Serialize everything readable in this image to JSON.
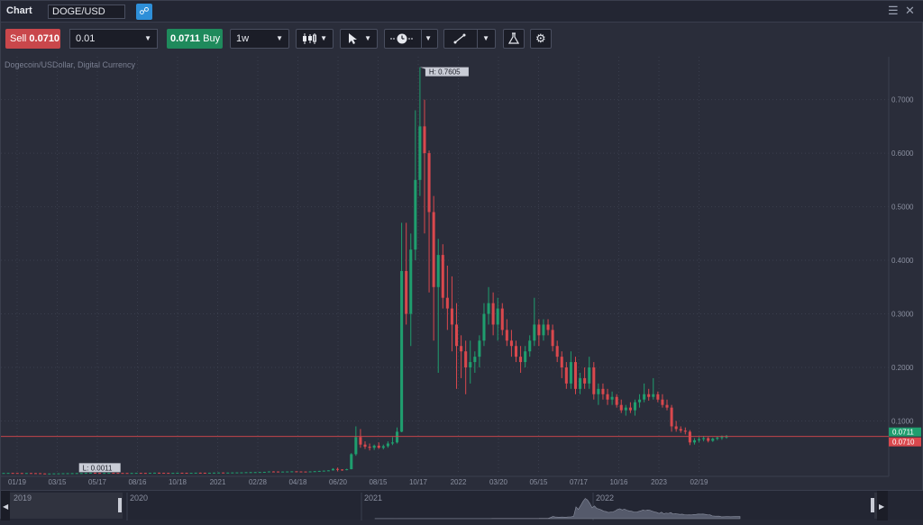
{
  "header": {
    "title": "Chart",
    "symbol": "DOGE/USD",
    "link_icon": "link-icon",
    "menu_icon": "hamburger-icon",
    "close_icon": "close-icon"
  },
  "toolbar": {
    "sell_label": "Sell",
    "sell_price": "0.0710",
    "quantity": "0.01",
    "buy_price": "0.0711",
    "buy_label": "Buy",
    "timeframe": "1w",
    "chart_type_icon": "candlestick-icon",
    "cursor_icon": "cursor-icon",
    "timezone_icon": "clock-icon",
    "drawing_icon": "trendline-icon",
    "indicators_icon": "flask-icon",
    "settings_icon": "gear-icon"
  },
  "colors": {
    "up": "#1f9e6e",
    "down": "#d9484d",
    "background": "#2a2d3a",
    "grid": "#3a3e4d",
    "sell_bg": "#c9474b",
    "buy_bg": "#1f8a5c"
  },
  "chart_data": {
    "type": "candlestick",
    "subtitle": "Dogecoin/USDollar, Digital Currency",
    "ylim": [
      0,
      0.78
    ],
    "y_ticks": [
      "0.1000",
      "0.2000",
      "0.3000",
      "0.4000",
      "0.5000",
      "0.6000",
      "0.7000"
    ],
    "y_tick_values": [
      0.1,
      0.2,
      0.3,
      0.4,
      0.5,
      0.6,
      0.7
    ],
    "x_ticks": [
      "01/19",
      "03/15",
      "05/17",
      "08/16",
      "10/18",
      "2021",
      "02/28",
      "04/18",
      "06/20",
      "08/15",
      "10/17",
      "2022",
      "03/20",
      "05/15",
      "07/17",
      "10/16",
      "2023",
      "02/19"
    ],
    "high_label": "H: 0.7605",
    "low_label": "L: 0.0011",
    "high_value": 0.7605,
    "low_value": 0.0011,
    "ask_label": "0.0711",
    "bid_label": "0.0710",
    "ask": 0.0711,
    "bid": 0.071,
    "navigator_labels": [
      "2019",
      "2020",
      "2021",
      "2022"
    ],
    "candles": [
      [
        0.003,
        0.0031,
        0.0029,
        0.003
      ],
      [
        0.003,
        0.0032,
        0.0029,
        0.0031
      ],
      [
        0.0031,
        0.0032,
        0.0029,
        0.003
      ],
      [
        0.003,
        0.0031,
        0.0028,
        0.0029
      ],
      [
        0.0029,
        0.003,
        0.0027,
        0.0028
      ],
      [
        0.0028,
        0.003,
        0.0027,
        0.0029
      ],
      [
        0.0029,
        0.003,
        0.0026,
        0.0027
      ],
      [
        0.0027,
        0.0028,
        0.0025,
        0.0026
      ],
      [
        0.0026,
        0.0027,
        0.002,
        0.0021
      ],
      [
        0.0021,
        0.0022,
        0.0011,
        0.0018
      ],
      [
        0.0018,
        0.0021,
        0.0017,
        0.002
      ],
      [
        0.002,
        0.0023,
        0.0019,
        0.0022
      ],
      [
        0.0022,
        0.0024,
        0.0021,
        0.0023
      ],
      [
        0.0023,
        0.0026,
        0.0022,
        0.0025
      ],
      [
        0.0025,
        0.0027,
        0.0024,
        0.0026
      ],
      [
        0.0026,
        0.0028,
        0.0025,
        0.0027
      ],
      [
        0.0027,
        0.0029,
        0.0026,
        0.0028
      ],
      [
        0.0028,
        0.003,
        0.0027,
        0.0029
      ],
      [
        0.0029,
        0.0033,
        0.0028,
        0.0032
      ],
      [
        0.0032,
        0.0036,
        0.0031,
        0.0034
      ],
      [
        0.0034,
        0.0036,
        0.003,
        0.0031
      ],
      [
        0.0031,
        0.0033,
        0.0029,
        0.003
      ],
      [
        0.003,
        0.0032,
        0.0028,
        0.0031
      ],
      [
        0.0031,
        0.0034,
        0.003,
        0.0033
      ],
      [
        0.0033,
        0.0035,
        0.0031,
        0.0032
      ],
      [
        0.0032,
        0.0034,
        0.003,
        0.0031
      ],
      [
        0.0031,
        0.0033,
        0.0029,
        0.003
      ],
      [
        0.003,
        0.0032,
        0.0028,
        0.0029
      ],
      [
        0.0029,
        0.0031,
        0.0027,
        0.003
      ],
      [
        0.003,
        0.0033,
        0.0029,
        0.0032
      ],
      [
        0.0032,
        0.0034,
        0.003,
        0.0031
      ],
      [
        0.0031,
        0.0033,
        0.0029,
        0.003
      ],
      [
        0.003,
        0.0034,
        0.0029,
        0.0033
      ],
      [
        0.0033,
        0.0036,
        0.0032,
        0.0035
      ],
      [
        0.0035,
        0.0037,
        0.0032,
        0.0033
      ],
      [
        0.0033,
        0.0035,
        0.0031,
        0.0032
      ],
      [
        0.0032,
        0.0034,
        0.003,
        0.0031
      ],
      [
        0.0031,
        0.0033,
        0.0029,
        0.0032
      ],
      [
        0.0032,
        0.0035,
        0.0031,
        0.0034
      ],
      [
        0.0034,
        0.0036,
        0.0032,
        0.0033
      ],
      [
        0.0033,
        0.0035,
        0.0031,
        0.0032
      ],
      [
        0.0032,
        0.0034,
        0.003,
        0.0033
      ],
      [
        0.0033,
        0.0036,
        0.0032,
        0.0035
      ],
      [
        0.0035,
        0.0037,
        0.0033,
        0.0034
      ],
      [
        0.0034,
        0.0036,
        0.0032,
        0.0033
      ],
      [
        0.0033,
        0.0035,
        0.0031,
        0.0034
      ],
      [
        0.0034,
        0.0037,
        0.0033,
        0.0036
      ],
      [
        0.0036,
        0.004,
        0.0035,
        0.0038
      ],
      [
        0.0038,
        0.004,
        0.0035,
        0.0036
      ],
      [
        0.0036,
        0.0038,
        0.0034,
        0.0037
      ],
      [
        0.0037,
        0.004,
        0.0036,
        0.0039
      ],
      [
        0.0039,
        0.0042,
        0.0037,
        0.004
      ],
      [
        0.004,
        0.0043,
        0.0038,
        0.0041
      ],
      [
        0.0041,
        0.0045,
        0.004,
        0.0044
      ],
      [
        0.0044,
        0.0047,
        0.0042,
        0.0045
      ],
      [
        0.0045,
        0.0048,
        0.0043,
        0.0046
      ],
      [
        0.0046,
        0.005,
        0.0045,
        0.0048
      ],
      [
        0.0048,
        0.0052,
        0.0046,
        0.005
      ],
      [
        0.005,
        0.006,
        0.0049,
        0.0058
      ],
      [
        0.0058,
        0.0062,
        0.0055,
        0.0057
      ],
      [
        0.0057,
        0.006,
        0.0053,
        0.0054
      ],
      [
        0.0054,
        0.0058,
        0.0052,
        0.0056
      ],
      [
        0.0056,
        0.0059,
        0.0054,
        0.0058
      ],
      [
        0.0058,
        0.0061,
        0.0056,
        0.006
      ],
      [
        0.006,
        0.0062,
        0.0057,
        0.0058
      ],
      [
        0.0058,
        0.006,
        0.0055,
        0.0057
      ],
      [
        0.0057,
        0.0059,
        0.0054,
        0.0056
      ],
      [
        0.0056,
        0.006,
        0.0055,
        0.0059
      ],
      [
        0.0059,
        0.0065,
        0.0057,
        0.0063
      ],
      [
        0.0063,
        0.007,
        0.0061,
        0.0068
      ],
      [
        0.0068,
        0.0075,
        0.0066,
        0.0073
      ],
      [
        0.0073,
        0.008,
        0.0071,
        0.0078
      ],
      [
        0.0078,
        0.012,
        0.0076,
        0.0105
      ],
      [
        0.0105,
        0.013,
        0.006,
        0.0095
      ],
      [
        0.0095,
        0.01,
        0.007,
        0.0085
      ],
      [
        0.0085,
        0.011,
        0.008,
        0.01
      ],
      [
        0.01,
        0.04,
        0.0098,
        0.038
      ],
      [
        0.038,
        0.09,
        0.035,
        0.07
      ],
      [
        0.07,
        0.085,
        0.05,
        0.056
      ],
      [
        0.056,
        0.062,
        0.048,
        0.052
      ],
      [
        0.052,
        0.058,
        0.045,
        0.05
      ],
      [
        0.05,
        0.056,
        0.046,
        0.054
      ],
      [
        0.054,
        0.06,
        0.048,
        0.05
      ],
      [
        0.05,
        0.056,
        0.047,
        0.053
      ],
      [
        0.053,
        0.062,
        0.05,
        0.058
      ],
      [
        0.058,
        0.07,
        0.055,
        0.06
      ],
      [
        0.06,
        0.088,
        0.058,
        0.08
      ],
      [
        0.08,
        0.47,
        0.079,
        0.38
      ],
      [
        0.38,
        0.47,
        0.28,
        0.3
      ],
      [
        0.3,
        0.45,
        0.24,
        0.42
      ],
      [
        0.42,
        0.68,
        0.4,
        0.55
      ],
      [
        0.55,
        0.7605,
        0.52,
        0.65
      ],
      [
        0.65,
        0.7,
        0.45,
        0.6
      ],
      [
        0.6,
        0.605,
        0.34,
        0.49
      ],
      [
        0.49,
        0.52,
        0.25,
        0.35
      ],
      [
        0.35,
        0.44,
        0.19,
        0.41
      ],
      [
        0.41,
        0.43,
        0.31,
        0.33
      ],
      [
        0.33,
        0.39,
        0.27,
        0.31
      ],
      [
        0.31,
        0.37,
        0.23,
        0.28
      ],
      [
        0.28,
        0.32,
        0.16,
        0.24
      ],
      [
        0.24,
        0.26,
        0.18,
        0.23
      ],
      [
        0.23,
        0.25,
        0.15,
        0.2
      ],
      [
        0.2,
        0.25,
        0.17,
        0.21
      ],
      [
        0.21,
        0.23,
        0.19,
        0.22
      ],
      [
        0.22,
        0.26,
        0.2,
        0.25
      ],
      [
        0.25,
        0.32,
        0.24,
        0.3
      ],
      [
        0.3,
        0.35,
        0.28,
        0.32
      ],
      [
        0.32,
        0.34,
        0.26,
        0.28
      ],
      [
        0.28,
        0.33,
        0.25,
        0.31
      ],
      [
        0.31,
        0.32,
        0.26,
        0.27
      ],
      [
        0.27,
        0.29,
        0.24,
        0.25
      ],
      [
        0.25,
        0.27,
        0.22,
        0.24
      ],
      [
        0.24,
        0.25,
        0.21,
        0.22
      ],
      [
        0.22,
        0.24,
        0.19,
        0.21
      ],
      [
        0.21,
        0.24,
        0.2,
        0.23
      ],
      [
        0.23,
        0.26,
        0.22,
        0.25
      ],
      [
        0.25,
        0.33,
        0.24,
        0.28
      ],
      [
        0.28,
        0.29,
        0.24,
        0.26
      ],
      [
        0.26,
        0.29,
        0.25,
        0.28
      ],
      [
        0.28,
        0.29,
        0.26,
        0.27
      ],
      [
        0.27,
        0.28,
        0.23,
        0.24
      ],
      [
        0.24,
        0.25,
        0.21,
        0.22
      ],
      [
        0.22,
        0.23,
        0.18,
        0.2
      ],
      [
        0.2,
        0.21,
        0.16,
        0.17
      ],
      [
        0.17,
        0.23,
        0.16,
        0.21
      ],
      [
        0.21,
        0.22,
        0.15,
        0.16
      ],
      [
        0.16,
        0.19,
        0.15,
        0.18
      ],
      [
        0.18,
        0.2,
        0.16,
        0.17
      ],
      [
        0.17,
        0.22,
        0.16,
        0.2
      ],
      [
        0.2,
        0.21,
        0.14,
        0.15
      ],
      [
        0.15,
        0.17,
        0.13,
        0.16
      ],
      [
        0.16,
        0.17,
        0.14,
        0.15
      ],
      [
        0.15,
        0.16,
        0.13,
        0.14
      ],
      [
        0.14,
        0.155,
        0.13,
        0.145
      ],
      [
        0.145,
        0.15,
        0.125,
        0.13
      ],
      [
        0.13,
        0.14,
        0.115,
        0.12
      ],
      [
        0.12,
        0.13,
        0.11,
        0.125
      ],
      [
        0.125,
        0.135,
        0.115,
        0.12
      ],
      [
        0.12,
        0.14,
        0.11,
        0.135
      ],
      [
        0.135,
        0.15,
        0.125,
        0.14
      ],
      [
        0.14,
        0.17,
        0.135,
        0.15
      ],
      [
        0.15,
        0.16,
        0.138,
        0.145
      ],
      [
        0.145,
        0.18,
        0.14,
        0.15
      ],
      [
        0.15,
        0.155,
        0.135,
        0.14
      ],
      [
        0.14,
        0.15,
        0.125,
        0.13
      ],
      [
        0.13,
        0.14,
        0.12,
        0.125
      ],
      [
        0.125,
        0.13,
        0.08,
        0.09
      ],
      [
        0.09,
        0.1,
        0.08,
        0.085
      ],
      [
        0.085,
        0.09,
        0.078,
        0.082
      ],
      [
        0.082,
        0.088,
        0.075,
        0.08
      ],
      [
        0.08,
        0.083,
        0.055,
        0.06
      ],
      [
        0.06,
        0.068,
        0.056,
        0.064
      ],
      [
        0.064,
        0.07,
        0.06,
        0.066
      ],
      [
        0.066,
        0.072,
        0.062,
        0.068
      ],
      [
        0.068,
        0.07,
        0.06,
        0.063
      ],
      [
        0.063,
        0.069,
        0.061,
        0.067
      ],
      [
        0.067,
        0.071,
        0.064,
        0.069
      ],
      [
        0.069,
        0.073,
        0.065,
        0.07
      ],
      [
        0.07,
        0.074,
        0.067,
        0.071
      ]
    ]
  }
}
